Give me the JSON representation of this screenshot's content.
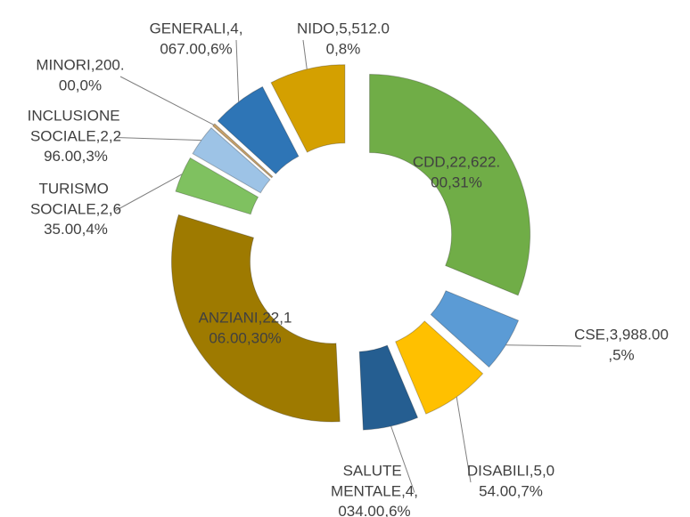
{
  "chart_data": {
    "type": "donut",
    "values": [
      22622,
      3988,
      5054,
      4034,
      22106,
      2635,
      2296,
      200,
      4067,
      5512
    ],
    "value_labels": [
      "CDD,22,622.00,31%",
      "CSE,3,988.00,5%",
      "DISABILI,5,054.00,7%",
      "SALUTE MENTALE,4,034.00,6%",
      "ANZIANI,22,106.00,30%",
      "TURISMO SOCIALE,2,635.00,4%",
      "INCLUSIONE SOCIALE,2,296.00,3%",
      "MINORI,200.00,0%",
      "GENERALI,4,067.00,6%",
      "NIDO,5,512.00,8%"
    ],
    "colors": [
      "#70ad47",
      "#5b9bd5",
      "#ffc000",
      "#255e91",
      "#9e7a00",
      "#7fc160",
      "#9dc3e6",
      "#c8a26a",
      "#2e75b6",
      "#d4a000"
    ]
  }
}
